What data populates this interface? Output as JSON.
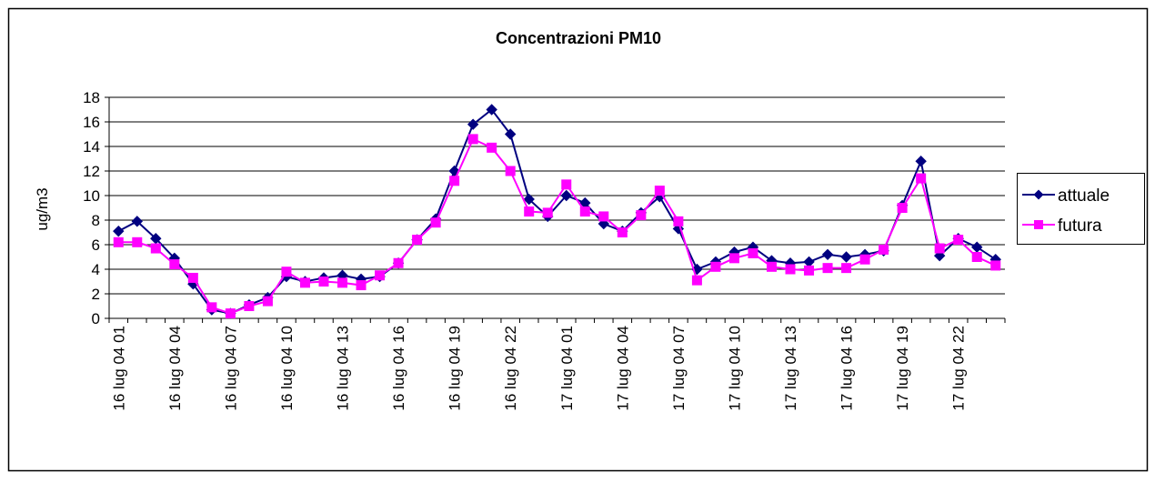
{
  "chart_data": {
    "type": "line",
    "title": "Concentrazioni PM10",
    "y_label": "ug/m3",
    "categories": [
      "16 lug 04 01",
      null,
      null,
      "16 lug 04 04",
      null,
      null,
      "16 lug 04 07",
      null,
      null,
      "16 lug 04 10",
      null,
      null,
      "16 lug 04 13",
      null,
      null,
      "16 lug 04 16",
      null,
      null,
      "16 lug 04 19",
      null,
      null,
      "16 lug 04 22",
      null,
      null,
      "17 lug 04 01",
      null,
      null,
      "17 lug 04 04",
      null,
      null,
      "17 lug 04 07",
      null,
      null,
      "17 lug 04 10",
      null,
      null,
      "17 lug 04 13",
      null,
      null,
      "17 lug 04 16",
      null,
      null,
      "17 lug 04 19",
      null,
      null,
      "17 lug 04 22",
      null,
      null
    ],
    "series": [
      {
        "name": "attuale",
        "color": "#000080",
        "marker": "diamond",
        "values": [
          7.1,
          7.9,
          6.5,
          4.9,
          2.8,
          0.7,
          0.4,
          1.1,
          1.7,
          3.4,
          3.0,
          3.3,
          3.5,
          3.2,
          3.4,
          4.5,
          6.4,
          8.1,
          12.0,
          15.8,
          17.0,
          15.0,
          9.7,
          8.3,
          10.0,
          9.4,
          7.7,
          7.1,
          8.6,
          9.9,
          7.3,
          4.0,
          4.6,
          5.4,
          5.8,
          4.7,
          4.5,
          4.6,
          5.2,
          5.0,
          5.2,
          5.5,
          9.2,
          12.8,
          5.1,
          6.5,
          5.8,
          4.8
        ]
      },
      {
        "name": "futura",
        "color": "#ff00ff",
        "marker": "square",
        "values": [
          6.2,
          6.2,
          5.7,
          4.4,
          3.3,
          0.9,
          0.4,
          1.0,
          1.4,
          3.8,
          2.9,
          3.0,
          2.9,
          2.7,
          3.5,
          4.5,
          6.4,
          7.8,
          11.2,
          14.6,
          13.9,
          12.0,
          8.7,
          8.6,
          10.9,
          8.7,
          8.3,
          7.0,
          8.4,
          10.4,
          7.9,
          3.1,
          4.2,
          4.9,
          5.3,
          4.2,
          4.0,
          3.9,
          4.1,
          4.1,
          4.8,
          5.6,
          9.0,
          11.4,
          5.7,
          6.4,
          5.0,
          4.3
        ]
      }
    ],
    "ylim": [
      0,
      18
    ],
    "yticks": [
      0,
      2,
      4,
      6,
      8,
      10,
      12,
      14,
      16,
      18
    ],
    "grid": true,
    "legend": "right"
  }
}
